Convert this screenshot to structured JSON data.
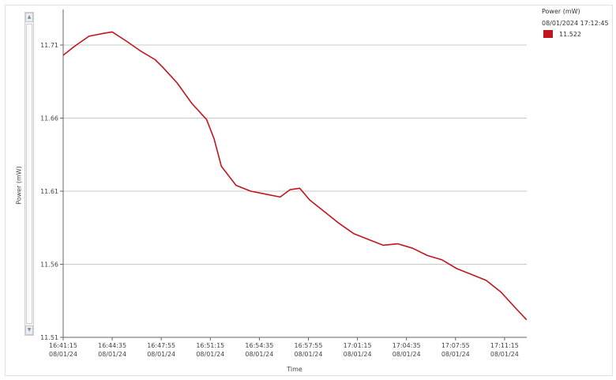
{
  "chart_data": {
    "type": "line",
    "ylabel": "Power (mW)",
    "xlabel": "Time",
    "ylim": [
      11.51,
      11.73
    ],
    "yticks": [
      "11.51",
      "11.56",
      "11.61",
      "11.66",
      "11.71"
    ],
    "xticks": [
      {
        "time": "16:41:15",
        "date": "08/01/24"
      },
      {
        "time": "16:44:35",
        "date": "08/01/24"
      },
      {
        "time": "16:47:55",
        "date": "08/01/24"
      },
      {
        "time": "16:51:15",
        "date": "08/01/24"
      },
      {
        "time": "16:54:35",
        "date": "08/01/24"
      },
      {
        "time": "16:57:55",
        "date": "08/01/24"
      },
      {
        "time": "17:01:15",
        "date": "08/01/24"
      },
      {
        "time": "17:04:35",
        "date": "08/01/24"
      },
      {
        "time": "17:07:55",
        "date": "08/01/24"
      },
      {
        "time": "17:11:15",
        "date": "08/01/24"
      }
    ],
    "grid": true,
    "legend_position": "top-right",
    "series": [
      {
        "name": "Power (mW)",
        "color": "#c0161f",
        "x": [
          "16:41:15",
          "16:42:00",
          "16:43:00",
          "16:44:00",
          "16:44:35",
          "16:45:30",
          "16:46:30",
          "16:47:30",
          "16:48:00",
          "16:49:00",
          "16:50:00",
          "16:51:00",
          "16:51:30",
          "16:52:00",
          "16:53:00",
          "16:54:00",
          "16:55:00",
          "16:56:00",
          "16:56:40",
          "16:57:20",
          "16:58:00",
          "16:59:00",
          "17:00:00",
          "17:01:00",
          "17:02:00",
          "17:03:00",
          "17:04:00",
          "17:05:00",
          "17:06:00",
          "17:07:00",
          "17:08:00",
          "17:09:00",
          "17:10:00",
          "17:11:00",
          "17:12:00",
          "17:12:45"
        ],
        "values": [
          11.703,
          11.709,
          11.716,
          11.718,
          11.719,
          11.713,
          11.706,
          11.7,
          11.695,
          11.684,
          11.67,
          11.659,
          11.646,
          11.627,
          11.614,
          11.61,
          11.608,
          11.606,
          11.611,
          11.612,
          11.604,
          11.596,
          11.588,
          11.581,
          11.577,
          11.573,
          11.574,
          11.571,
          11.566,
          11.563,
          11.557,
          11.553,
          11.549,
          11.541,
          11.53,
          11.522
        ]
      }
    ]
  },
  "legend": {
    "title": "Power (mW)",
    "timestamp": "08/01/2024 17:12:45",
    "value": "11.522",
    "color": "#c0161f"
  },
  "colors": {
    "line": "#c0161f",
    "grid": "#c8c8c8",
    "axis": "#666666"
  },
  "icons": {
    "scroll_up": "chevron-up-icon",
    "scroll_down": "chevron-down-icon"
  }
}
